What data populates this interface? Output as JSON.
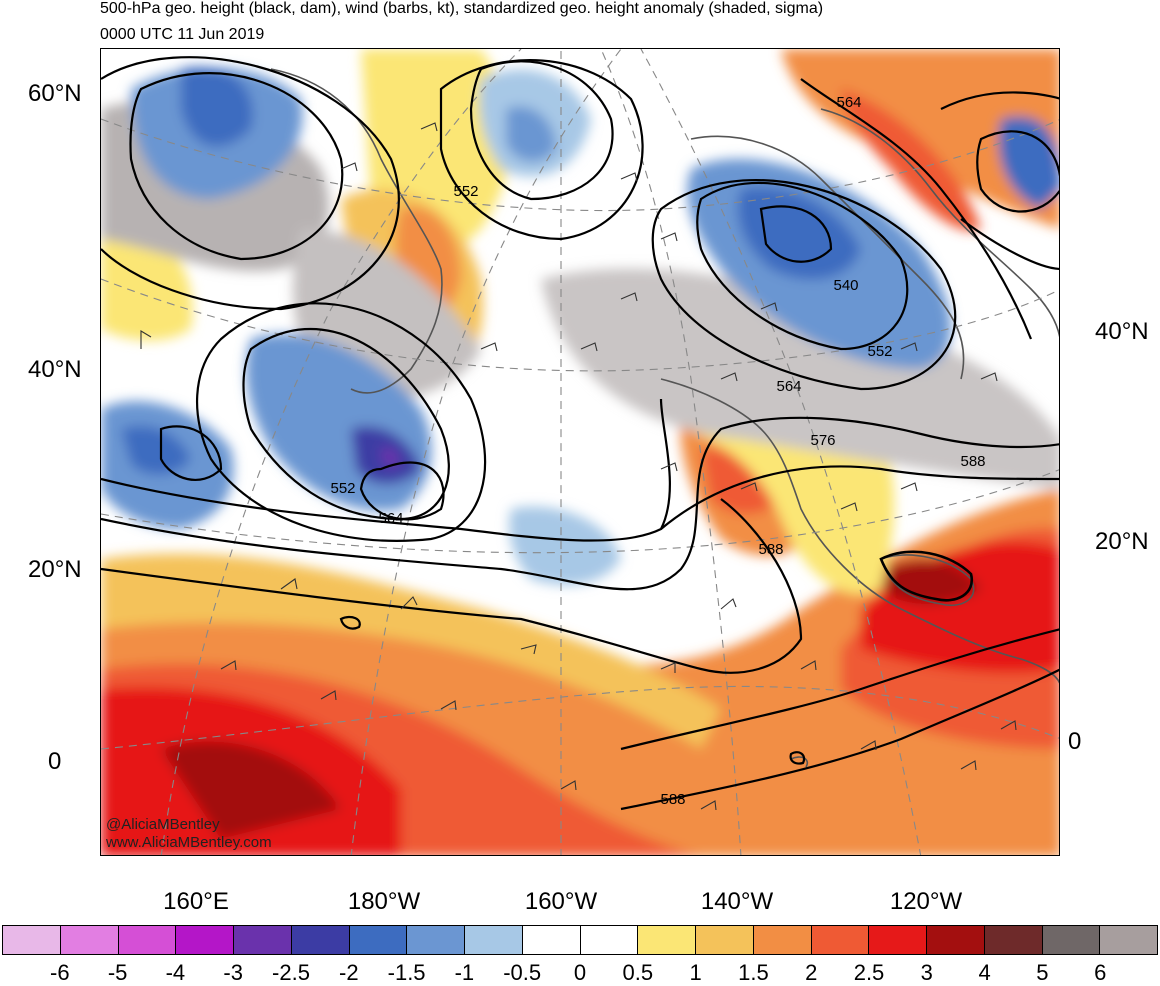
{
  "header": {
    "title": "500-hPa geo. height (black, dam), wind (barbs, kt), standardized geo. height anomaly (shaded, sigma)",
    "valid_time": "0000 UTC 11 Jun 2019"
  },
  "map": {
    "projection": "polar stereographic, North Pacific",
    "lat_labels_left": [
      "60°N",
      "40°N",
      "20°N",
      "0"
    ],
    "lat_labels_right": [
      "40°N",
      "20°N",
      "0"
    ],
    "lon_labels_bottom": [
      "160°E",
      "180°W",
      "160°W",
      "140°W",
      "120°W"
    ],
    "contour_labels": [
      "552",
      "564",
      "540",
      "552",
      "564",
      "576",
      "588",
      "552",
      "564",
      "588",
      "588"
    ],
    "credit_handle": "@AliciaMBentley",
    "credit_site": "www.AliciaMBentley.com",
    "colors": {
      "ocean_neutral": "#ffffff",
      "land_outline": "#555555",
      "contour": "#000000",
      "graticule": "#888888"
    }
  },
  "colorbar": {
    "labels": [
      "-6",
      "-5",
      "-4",
      "-3",
      "-2.5",
      "-2",
      "-1.5",
      "-1",
      "-0.5",
      "0",
      "0.5",
      "1",
      "1.5",
      "2",
      "2.5",
      "3",
      "4",
      "5",
      "6"
    ],
    "colors": [
      "#e8b8e8",
      "#e27ee2",
      "#d54fd6",
      "#b416c8",
      "#6a32ac",
      "#3c3ca4",
      "#3d6cc0",
      "#6b96d2",
      "#a7c8e6",
      "#ffffff",
      "#ffffff",
      "#fbe675",
      "#f4c25a",
      "#f28e44",
      "#ef5a34",
      "#e61919",
      "#a30f0f",
      "#6e2a2a",
      "#6f6767",
      "#a79e9e"
    ]
  }
}
